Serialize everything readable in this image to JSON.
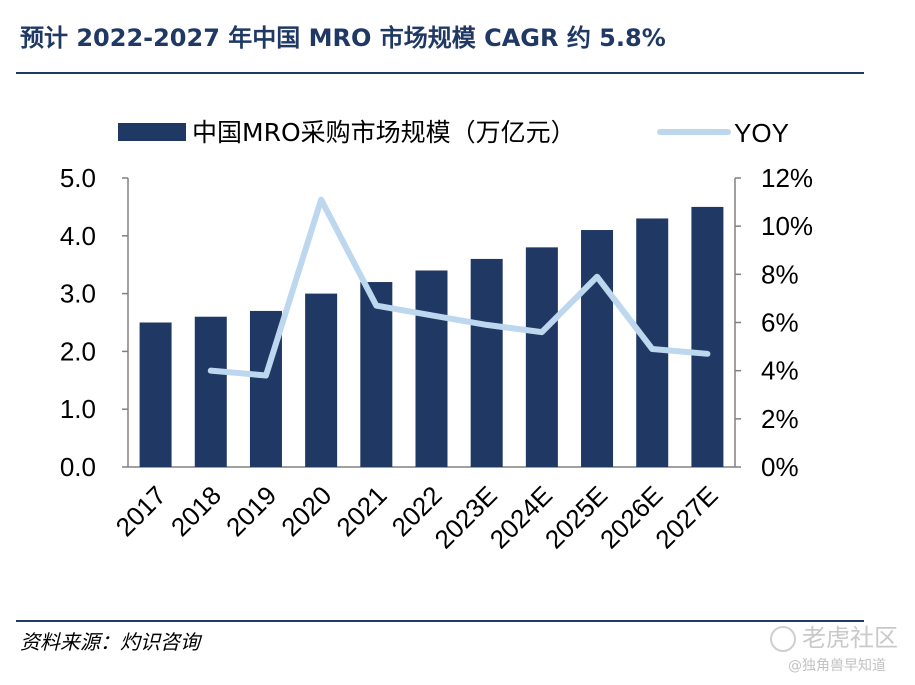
{
  "header": {
    "title": "预计 2022-2027 年中国 MRO 市场规模 CAGR 约 5.8%"
  },
  "footer": {
    "source": "资料来源：灼识咨询"
  },
  "watermark": {
    "brand": "老虎社区",
    "user": "@独角兽早知道"
  },
  "chart_data": {
    "type": "bar",
    "categories": [
      "2017",
      "2018",
      "2019",
      "2020",
      "2021",
      "2022",
      "2023E",
      "2024E",
      "2025E",
      "2026E",
      "2027E"
    ],
    "series": [
      {
        "name": "中国MRO采购市场规模（万亿元）",
        "type": "bar",
        "axis": "left",
        "values": [
          2.5,
          2.6,
          2.7,
          3.0,
          3.2,
          3.4,
          3.6,
          3.8,
          4.1,
          4.3,
          4.5
        ],
        "color": "#203864"
      },
      {
        "name": "YOY",
        "type": "line",
        "axis": "right",
        "values": [
          null,
          4.0,
          3.8,
          11.1,
          6.7,
          6.3,
          5.9,
          5.6,
          7.9,
          4.9,
          4.7
        ],
        "color": "#bdd7ee"
      }
    ],
    "ylim": [
      0,
      5
    ],
    "yticks": [
      "0.0",
      "1.0",
      "2.0",
      "3.0",
      "4.0",
      "5.0"
    ],
    "y2lim": [
      0,
      12
    ],
    "y2ticks": [
      "0%",
      "2%",
      "4%",
      "6%",
      "8%",
      "10%",
      "12%"
    ],
    "legend_position": "top",
    "grid": false
  }
}
